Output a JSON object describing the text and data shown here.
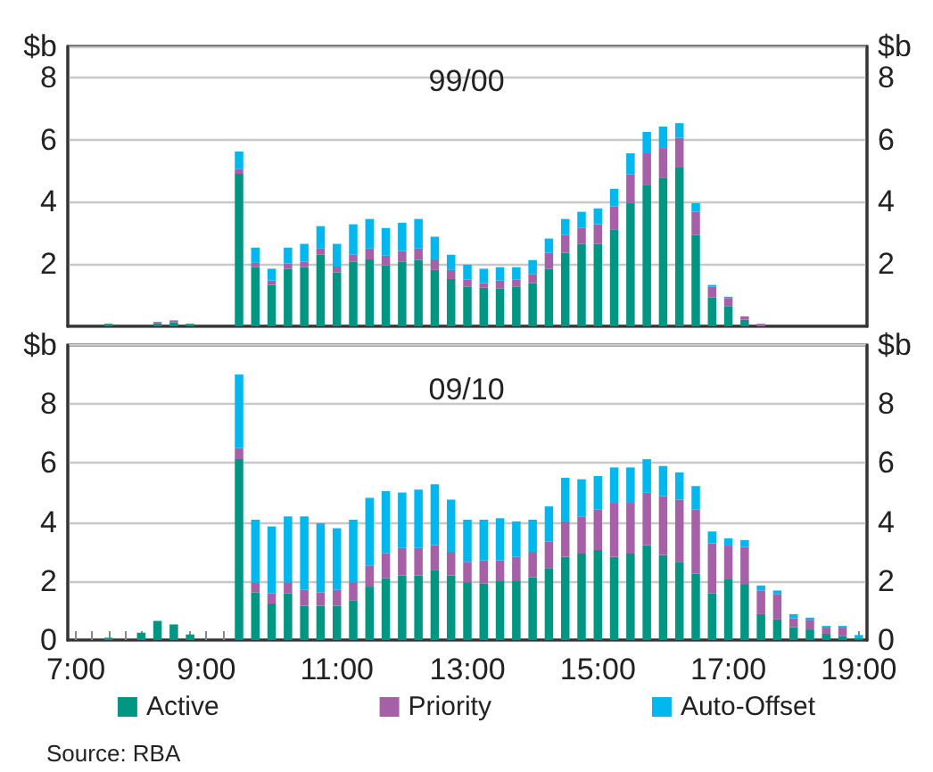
{
  "chart_data": [
    {
      "type": "bar",
      "title": "99/00",
      "stacked": true,
      "categories": [
        null,
        null,
        null,
        null,
        null,
        null,
        null,
        null,
        null,
        null,
        null,
        null,
        null,
        null,
        null,
        null,
        null,
        null,
        null,
        null,
        null,
        null,
        null,
        null,
        null,
        null,
        null,
        null,
        null,
        null,
        null,
        null,
        null,
        null,
        null,
        null,
        null,
        null,
        null,
        null,
        null,
        null,
        null,
        null,
        null,
        null,
        null,
        null,
        null
      ],
      "series": [
        {
          "color": "#009682",
          "values": [
            0,
            0,
            0.08,
            0,
            0,
            0.1,
            0.13,
            0.08,
            0,
            0,
            4.9,
            1.9,
            1.33,
            1.85,
            1.9,
            2.3,
            1.73,
            2.08,
            2.15,
            1.96,
            2.08,
            2.13,
            1.81,
            1.52,
            1.28,
            1.24,
            1.22,
            1.28,
            1.39,
            1.85,
            2.36,
            2.65,
            2.65,
            3.1,
            3.96,
            4.53,
            4.76,
            5.1,
            2.93,
            0.93,
            0.65,
            0.21,
            0,
            0,
            0,
            0,
            0,
            0,
            0
          ]
        },
        {
          "color": "#a560a8",
          "values": [
            0,
            0,
            0,
            0,
            0,
            0.04,
            0.06,
            0,
            0,
            0,
            0.15,
            0.14,
            0.14,
            0.17,
            0.18,
            0.2,
            0.19,
            0.22,
            0.35,
            0.31,
            0.34,
            0.37,
            0.34,
            0.29,
            0.22,
            0.15,
            0.25,
            0.22,
            0.29,
            0.51,
            0.57,
            0.51,
            0.63,
            0.75,
            0.92,
            1.03,
            0.97,
            0.96,
            0.75,
            0.35,
            0.26,
            0.11,
            0.08,
            0,
            0,
            0,
            0,
            0,
            0
          ]
        },
        {
          "color": "#00b8ee",
          "values": [
            0,
            0,
            0,
            0,
            0,
            0,
            0,
            0,
            0,
            0,
            0.57,
            0.49,
            0.38,
            0.51,
            0.57,
            0.72,
            0.73,
            0.98,
            0.95,
            0.89,
            0.91,
            0.95,
            0.73,
            0.49,
            0.48,
            0.46,
            0.43,
            0.4,
            0.45,
            0.46,
            0.52,
            0.52,
            0.51,
            0.57,
            0.68,
            0.69,
            0.69,
            0.47,
            0.28,
            0.05,
            0.04,
            0,
            0,
            0,
            0,
            0,
            0,
            0,
            0
          ]
        }
      ],
      "ylim": [
        0,
        9
      ],
      "yticks": [
        {
          "value": 0,
          "label": null
        },
        2,
        4,
        6,
        8,
        {
          "value": 9,
          "label": "$b"
        }
      ],
      "y2lim": [
        0,
        9
      ],
      "y2ticks": [
        {
          "value": 0,
          "label": null
        },
        2,
        4,
        6,
        8,
        {
          "value": 9,
          "label": "$b"
        }
      ],
      "grid": "y",
      "tick_labels": "y"
    },
    {
      "type": "bar",
      "title": "09/10",
      "stacked": true,
      "categories": [
        "7:00",
        null,
        null,
        null,
        null,
        null,
        null,
        null,
        "9:00",
        null,
        null,
        null,
        null,
        null,
        null,
        null,
        "11:00",
        null,
        null,
        null,
        null,
        null,
        null,
        null,
        "13:00",
        null,
        null,
        null,
        null,
        null,
        null,
        null,
        "15:00",
        null,
        null,
        null,
        null,
        null,
        null,
        null,
        "17:00",
        null,
        null,
        null,
        null,
        null,
        null,
        null,
        "19:00"
      ],
      "series": [
        {
          "name": "Active",
          "color": "#009682",
          "values": [
            0,
            0,
            0.08,
            0,
            0.25,
            0.65,
            0.53,
            0.19,
            0,
            0,
            6.13,
            1.62,
            1.24,
            1.58,
            1.16,
            1.16,
            1.16,
            1.35,
            1.81,
            2.1,
            2.19,
            2.19,
            2.38,
            2.19,
            1.96,
            1.92,
            2.02,
            2.02,
            2.13,
            2.42,
            2.82,
            2.93,
            3.05,
            2.82,
            2.93,
            3.22,
            2.88,
            2.65,
            2.25,
            1.58,
            2.08,
            1.9,
            0.88,
            0.7,
            0.44,
            0.36,
            0.21,
            0.13,
            0.08
          ]
        },
        {
          "name": "Priority",
          "color": "#a560a8",
          "values": [
            0,
            0,
            0,
            0,
            0,
            0,
            0,
            0,
            0,
            0,
            0.38,
            0.34,
            0.34,
            0.38,
            0.54,
            0.46,
            0.54,
            0.61,
            0.72,
            0.85,
            0.93,
            0.93,
            0.84,
            0.8,
            0.69,
            0.78,
            0.68,
            0.8,
            0.86,
            0.91,
            1.2,
            1.26,
            1.37,
            1.83,
            1.72,
            1.77,
            2.0,
            2.11,
            2.17,
            1.7,
            1.12,
            1.26,
            0.8,
            0.86,
            0.3,
            0.33,
            0.21,
            0.29,
            0
          ]
        },
        {
          "name": "Auto-Offset",
          "color": "#00b8ee",
          "values": [
            0,
            0,
            0,
            0,
            0,
            0,
            0,
            0,
            0,
            0,
            2.49,
            2.12,
            2.27,
            2.23,
            2.49,
            2.34,
            2.09,
            2.12,
            2.29,
            2.1,
            1.88,
            1.98,
            2.06,
            1.77,
            1.43,
            1.38,
            1.43,
            1.2,
            1.09,
            1.2,
            1.48,
            1.26,
            1.14,
            1.2,
            1.2,
            1.14,
            1.02,
            0.92,
            0.8,
            0.4,
            0.25,
            0.23,
            0.17,
            0.12,
            0.14,
            0.07,
            0.06,
            0.06,
            0.09
          ]
        }
      ],
      "ylim": [
        0,
        10
      ],
      "yticks": [
        0,
        2,
        4,
        6,
        8,
        {
          "value": 10,
          "label": "$b"
        }
      ],
      "y2lim": [
        0,
        10
      ],
      "y2ticks": [
        0,
        2,
        4,
        6,
        8,
        {
          "value": 10,
          "label": "$b"
        }
      ],
      "grid": "y",
      "legend": "bottom",
      "annotations": [
        "Source: RBA"
      ]
    }
  ]
}
